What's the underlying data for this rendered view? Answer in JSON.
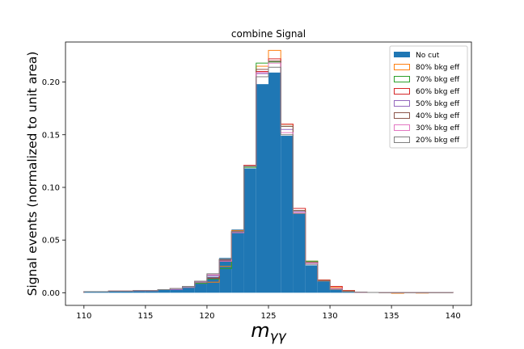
{
  "chart_data": {
    "type": "histogram",
    "title": "combine Signal",
    "xlabel": "m_{γγ}",
    "ylabel": "Signal events (normalized to unit area)",
    "xlim": [
      108.5,
      141.5
    ],
    "ylim": [
      -0.012,
      0.238
    ],
    "xticks": [
      110,
      115,
      120,
      125,
      130,
      135,
      140
    ],
    "yticks": [
      0.0,
      0.05,
      0.1,
      0.15,
      0.2
    ],
    "ytick_labels": [
      "0.00",
      "0.05",
      "0.10",
      "0.15",
      "0.20"
    ],
    "legend_position": "upper right",
    "bin_edges": [
      110,
      111,
      112,
      113,
      114,
      115,
      116,
      117,
      118,
      119,
      120,
      121,
      122,
      123,
      124,
      125,
      126,
      127,
      128,
      129,
      130,
      131,
      132,
      133,
      134,
      135,
      136,
      137,
      138,
      139,
      140
    ],
    "series": [
      {
        "name": "No cut",
        "style": "filled",
        "color": "#1f77b4",
        "values": [
          0.001,
          0.001,
          0.0015,
          0.0015,
          0.002,
          0.002,
          0.003,
          0.003,
          0.005,
          0.009,
          0.015,
          0.033,
          0.06,
          0.118,
          0.198,
          0.209,
          0.149,
          0.075,
          0.026,
          0.011,
          0.003,
          0.001,
          0.0005,
          0.0003,
          0.0002,
          0.0002,
          0.0002,
          0.0002,
          0.0002,
          0.0002
        ]
      },
      {
        "name": "80% bkg eff",
        "style": "step",
        "color": "#ff7f0e",
        "values": [
          0.001,
          0.001,
          0.0015,
          0.0015,
          0.002,
          0.002,
          0.003,
          0.003,
          0.005,
          0.009,
          0.01,
          0.025,
          0.059,
          0.12,
          0.215,
          0.23,
          0.16,
          0.08,
          0.03,
          0.012,
          0.005,
          0.002,
          0.0005,
          0.0003,
          0.0002,
          -0.0005,
          0.0002,
          -0.0003,
          0.0002,
          0.0002
        ]
      },
      {
        "name": "70% bkg eff",
        "style": "step",
        "color": "#2ca02c",
        "values": [
          0.001,
          0.001,
          0.0015,
          0.0015,
          0.002,
          0.002,
          0.003,
          0.003,
          0.005,
          0.009,
          0.013,
          0.023,
          0.057,
          0.119,
          0.218,
          0.219,
          0.158,
          0.078,
          0.03,
          0.012,
          0.004,
          0.002,
          0.0005,
          0.0003,
          0.0002,
          0.0002,
          0.0002,
          0.0002,
          0.0002,
          0.0002
        ]
      },
      {
        "name": "60% bkg eff",
        "style": "step",
        "color": "#d62728",
        "values": [
          0.001,
          0.001,
          0.0015,
          0.0015,
          0.002,
          0.002,
          0.003,
          0.003,
          0.006,
          0.01,
          0.014,
          0.03,
          0.057,
          0.121,
          0.21,
          0.222,
          0.16,
          0.08,
          0.029,
          0.012,
          0.006,
          0.002,
          0.0005,
          0.0003,
          0.0002,
          0.0002,
          0.0002,
          0.0002,
          0.0002,
          0.0002
        ]
      },
      {
        "name": "50% bkg eff",
        "style": "step",
        "color": "#9467bd",
        "values": [
          0.001,
          0.001,
          0.0015,
          0.0015,
          0.002,
          0.002,
          0.003,
          0.003,
          0.005,
          0.01,
          0.016,
          0.031,
          0.058,
          0.12,
          0.208,
          0.22,
          0.155,
          0.077,
          0.028,
          0.011,
          0.004,
          0.001,
          0.0005,
          0.0003,
          0.0002,
          0.0002,
          0.0002,
          0.0002,
          0.0002,
          0.0002
        ]
      },
      {
        "name": "40% bkg eff",
        "style": "step",
        "color": "#8c564b",
        "values": [
          0.001,
          0.001,
          0.0015,
          0.0015,
          0.002,
          0.002,
          0.003,
          0.004,
          0.006,
          0.011,
          0.017,
          0.031,
          0.058,
          0.12,
          0.212,
          0.22,
          0.158,
          0.078,
          0.029,
          0.011,
          0.004,
          0.001,
          0.0005,
          0.0003,
          0.0002,
          0.0002,
          0.0002,
          0.0002,
          0.0002,
          0.0002
        ]
      },
      {
        "name": "30% bkg eff",
        "style": "step",
        "color": "#e377c2",
        "values": [
          0.001,
          0.001,
          0.0015,
          0.0015,
          0.002,
          0.002,
          0.003,
          0.004,
          0.006,
          0.011,
          0.017,
          0.03,
          0.057,
          0.12,
          0.209,
          0.218,
          0.152,
          0.076,
          0.028,
          0.011,
          0.004,
          0.001,
          0.0005,
          0.0003,
          0.0002,
          0.0002,
          0.0002,
          0.0002,
          0.0002,
          0.0002
        ]
      },
      {
        "name": "20% bkg eff",
        "style": "step",
        "color": "#7f7f7f",
        "values": [
          0.001,
          0.001,
          0.0015,
          0.0015,
          0.002,
          0.002,
          0.003,
          0.004,
          0.006,
          0.011,
          0.018,
          0.032,
          0.058,
          0.12,
          0.205,
          0.214,
          0.15,
          0.075,
          0.027,
          0.011,
          0.003,
          0.001,
          0.0005,
          0.0003,
          0.0002,
          0.0002,
          0.0002,
          0.0002,
          0.0002,
          0.0002
        ]
      }
    ]
  }
}
